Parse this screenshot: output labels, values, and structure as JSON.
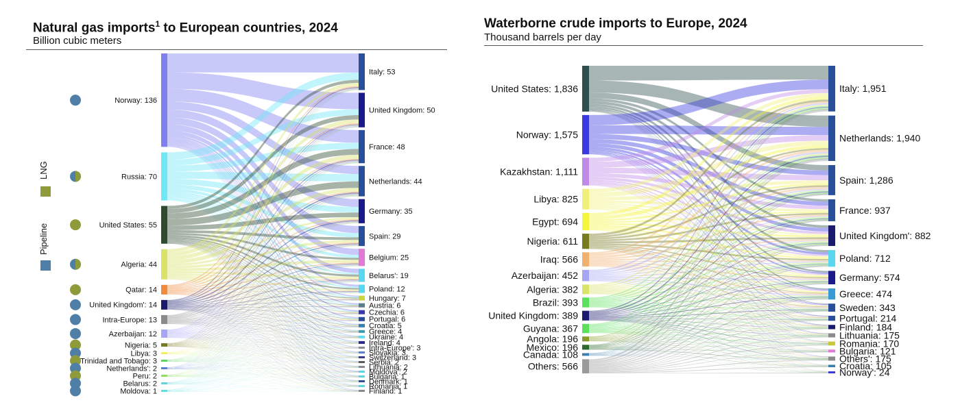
{
  "left": {
    "title_main": "Natural gas imports",
    "title_sup": "1",
    "title_rest": " to European countries, 2024",
    "subtitle": "Billion cubic meters",
    "legend": {
      "lng_label": "LNG",
      "pipeline_label": "Pipeline",
      "lng_color": "#8f9b3a",
      "pipeline_color": "#4f7fa6"
    }
  },
  "right": {
    "title": "Waterborne crude imports to Europe, 2024",
    "subtitle": "Thousand barrels per day"
  },
  "chart_data": [
    {
      "type": "sankey",
      "title": "Natural gas imports1 to European countries, 2024",
      "unit": "Billion cubic meters",
      "sources": [
        {
          "name": "Norway",
          "label": "Norway: 136",
          "value": 136,
          "color": "#7f7ff0",
          "route": "Pipeline"
        },
        {
          "name": "Russia",
          "label": "Russia: 70",
          "value": 70,
          "color": "#6ee8f5",
          "route": "Mixed"
        },
        {
          "name": "United States",
          "label": "United States: 55",
          "value": 55,
          "color": "#2f4a2f",
          "route": "LNG"
        },
        {
          "name": "Algeria",
          "label": "Algeria: 44",
          "value": 44,
          "color": "#d9e36a",
          "route": "Mixed"
        },
        {
          "name": "Qatar",
          "label": "Qatar: 14",
          "value": 14,
          "color": "#f08a3c",
          "route": "LNG"
        },
        {
          "name": "United Kingdom'",
          "label": "United Kingdom': 14",
          "value": 14,
          "color": "#1a1a6e",
          "route": "Pipeline"
        },
        {
          "name": "Intra-Europe",
          "label": "Intra-Europe: 13",
          "value": 13,
          "color": "#8a8a8a",
          "route": "Pipeline"
        },
        {
          "name": "Azerbaijan",
          "label": "Azerbaijan: 12",
          "value": 12,
          "color": "#a6a6f5",
          "route": "Pipeline"
        },
        {
          "name": "Nigeria",
          "label": "Nigeria: 5",
          "value": 5,
          "color": "#7a7a1f",
          "route": "LNG"
        },
        {
          "name": "Libya",
          "label": "Libya: 3",
          "value": 3,
          "color": "#f0f05a",
          "route": "Pipeline"
        },
        {
          "name": "Trinidad and Tobago",
          "label": "Trinidad and Tobago: 3",
          "value": 3,
          "color": "#5ad65a",
          "route": "LNG"
        },
        {
          "name": "Netherlands'",
          "label": "Netherlands': 2",
          "value": 2,
          "color": "#5a7fd6",
          "route": "Pipeline"
        },
        {
          "name": "Peru",
          "label": "Peru: 2",
          "value": 2,
          "color": "#8fe05a",
          "route": "LNG"
        },
        {
          "name": "Belarus",
          "label": "Belarus: 2",
          "value": 2,
          "color": "#5ad6e0",
          "route": "Pipeline"
        },
        {
          "name": "Moldova",
          "label": "Moldova: 1",
          "value": 1,
          "color": "#5ae0e0",
          "route": "Pipeline"
        }
      ],
      "targets": [
        {
          "name": "Italy",
          "label": "Italy: 53",
          "value": 53,
          "color": "#2a4f9a"
        },
        {
          "name": "United Kingdom",
          "label": "United Kingdom: 50",
          "value": 50,
          "color": "#1a1a8a"
        },
        {
          "name": "France",
          "label": "France: 48",
          "value": 48,
          "color": "#2a4f9a"
        },
        {
          "name": "Netherlands",
          "label": "Netherlands: 44",
          "value": 44,
          "color": "#2a4f9a"
        },
        {
          "name": "Germany",
          "label": "Germany: 35",
          "value": 35,
          "color": "#1a1a8a"
        },
        {
          "name": "Spain",
          "label": "Spain: 29",
          "value": 29,
          "color": "#2a4f9a"
        },
        {
          "name": "Belgium",
          "label": "Belgium: 25",
          "value": 25,
          "color": "#e07ad6"
        },
        {
          "name": "Belarus'",
          "label": "Belarus': 19",
          "value": 19,
          "color": "#5ad6f0"
        },
        {
          "name": "Poland",
          "label": "Poland: 12",
          "value": 12,
          "color": "#5ad6f0"
        },
        {
          "name": "Hungary",
          "label": "Hungary: 7",
          "value": 7,
          "color": "#c9d640"
        },
        {
          "name": "Austria",
          "label": "Austria: 6",
          "value": 6,
          "color": "#5a7f8a"
        },
        {
          "name": "Czechia",
          "label": "Czechia: 6",
          "value": 6,
          "color": "#3a3ab0"
        },
        {
          "name": "Portugal",
          "label": "Portugal: 6",
          "value": 6,
          "color": "#2a4f9a"
        },
        {
          "name": "Croatia",
          "label": "Croatia: 5",
          "value": 5,
          "color": "#3a7fb0"
        },
        {
          "name": "Greece",
          "label": "Greece: 4",
          "value": 4,
          "color": "#3a9ab0"
        },
        {
          "name": "Ukraine",
          "label": "Ukraine: 4",
          "value": 4,
          "color": "#5ae0f0"
        },
        {
          "name": "Ireland",
          "label": "Ireland: 4",
          "value": 4,
          "color": "#2a2a8a"
        },
        {
          "name": "Intra-Europe'",
          "label": "Intra-Europe': 3",
          "value": 3,
          "color": "#8a8a8a"
        },
        {
          "name": "Slovakia",
          "label": "Slovakia: 3",
          "value": 3,
          "color": "#5a7fd6"
        },
        {
          "name": "Switzerland",
          "label": "Switzerland: 3",
          "value": 3,
          "color": "#3a3a8a"
        },
        {
          "name": "Serbia",
          "label": "Serbia: 2",
          "value": 2,
          "color": "#5a5a5a"
        },
        {
          "name": "Lithuania",
          "label": "Lithuania: 2",
          "value": 2,
          "color": "#8a8a8a"
        },
        {
          "name": "Moldova'",
          "label": "Moldova': 2",
          "value": 2,
          "color": "#5ad6e0"
        },
        {
          "name": "Bulgaria",
          "label": "Bulgaria: 1",
          "value": 1,
          "color": "#5ad6e0"
        },
        {
          "name": "Denmark",
          "label": "Denmark: 1",
          "value": 1,
          "color": "#2a4f9a"
        },
        {
          "name": "Romania",
          "label": "Romania: 1",
          "value": 1,
          "color": "#5ad6e0"
        },
        {
          "name": "Finland",
          "label": "Finland: 1",
          "value": 1,
          "color": "#8a8a8a"
        }
      ],
      "markers": [
        "Pipeline",
        "Mixed",
        "LNG",
        "Mixed",
        "LNG",
        "Pipeline",
        "Pipeline",
        "Pipeline",
        "LNG",
        "Pipeline",
        "LNG",
        "Pipeline",
        "LNG",
        "Pipeline",
        "Pipeline"
      ],
      "legend": [
        "LNG",
        "Pipeline"
      ],
      "legend_position": "left"
    },
    {
      "type": "sankey",
      "title": "Waterborne crude imports to Europe, 2024",
      "unit": "Thousand barrels per day",
      "sources": [
        {
          "name": "United States",
          "label": "United States: 1,836",
          "value": 1836,
          "color": "#2f4f4f"
        },
        {
          "name": "Norway",
          "label": "Norway: 1,575",
          "value": 1575,
          "color": "#3a3ae0"
        },
        {
          "name": "Kazakhstan",
          "label": "Kazakhstan: 1,111",
          "value": 1111,
          "color": "#c08ae8"
        },
        {
          "name": "Libya",
          "label": "Libya: 825",
          "value": 825,
          "color": "#f0f07a"
        },
        {
          "name": "Egypt",
          "label": "Egypt: 694",
          "value": 694,
          "color": "#f5f540"
        },
        {
          "name": "Nigeria",
          "label": "Nigeria: 611",
          "value": 611,
          "color": "#7a7a1f"
        },
        {
          "name": "Iraq",
          "label": "Iraq: 566",
          "value": 566,
          "color": "#f0b070"
        },
        {
          "name": "Azerbaijan",
          "label": "Azerbaijan: 452",
          "value": 452,
          "color": "#a6a6f5"
        },
        {
          "name": "Algeria",
          "label": "Algeria: 382",
          "value": 382,
          "color": "#d9e36a"
        },
        {
          "name": "Brazil",
          "label": "Brazil: 393",
          "value": 393,
          "color": "#5ae05a"
        },
        {
          "name": "United Kingdom",
          "label": "United Kingdom: 389",
          "value": 389,
          "color": "#1a1a6e"
        },
        {
          "name": "Guyana",
          "label": "Guyana: 367",
          "value": 367,
          "color": "#5ae05a"
        },
        {
          "name": "Angola",
          "label": "Angola: 196",
          "value": 196,
          "color": "#8a9a2a"
        },
        {
          "name": "Mexico",
          "label": "Mexico: 196",
          "value": 196,
          "color": "#2a6a2a"
        },
        {
          "name": "Canada",
          "label": "Canada: 108",
          "value": 108,
          "color": "#3a7fb0"
        },
        {
          "name": "Others",
          "label": "Others: 566",
          "value": 566,
          "color": "#9a9a9a"
        }
      ],
      "targets": [
        {
          "name": "Italy",
          "label": "Italy: 1,951",
          "value": 1951,
          "color": "#2a4f9a"
        },
        {
          "name": "Netherlands",
          "label": "Netherlands: 1,940",
          "value": 1940,
          "color": "#2a4f9a"
        },
        {
          "name": "Spain",
          "label": "Spain: 1,286",
          "value": 1286,
          "color": "#2a4f9a"
        },
        {
          "name": "France",
          "label": "France: 937",
          "value": 937,
          "color": "#2a4f9a"
        },
        {
          "name": "United Kingdom'",
          "label": "United Kingdom': 882",
          "value": 882,
          "color": "#1a1a6e"
        },
        {
          "name": "Poland",
          "label": "Poland: 712",
          "value": 712,
          "color": "#5ad6f0"
        },
        {
          "name": "Germany",
          "label": "Germany: 574",
          "value": 574,
          "color": "#1a1a8a"
        },
        {
          "name": "Greece",
          "label": "Greece: 474",
          "value": 474,
          "color": "#3a9ad6"
        },
        {
          "name": "Sweden",
          "label": "Sweden: 343",
          "value": 343,
          "color": "#2a4f9a"
        },
        {
          "name": "Portugal",
          "label": "Portugal: 214",
          "value": 214,
          "color": "#2a4f9a"
        },
        {
          "name": "Finland",
          "label": "Finland: 184",
          "value": 184,
          "color": "#1a1a6e"
        },
        {
          "name": "Lithuania",
          "label": "Lithuania: 175",
          "value": 175,
          "color": "#8a8a8a"
        },
        {
          "name": "Romania",
          "label": "Romania: 170",
          "value": 170,
          "color": "#c9c940"
        },
        {
          "name": "Bulgaria",
          "label": "Bulgaria: 121",
          "value": 121,
          "color": "#e07ad6"
        },
        {
          "name": "Others'",
          "label": "Others': 175",
          "value": 175,
          "color": "#8a8a8a"
        },
        {
          "name": "Croatia",
          "label": "Croatia: 105",
          "value": 105,
          "color": "#3a7fb0"
        },
        {
          "name": "Norway'",
          "label": "Norway': 24",
          "value": 24,
          "color": "#3a3ae0"
        }
      ]
    }
  ]
}
